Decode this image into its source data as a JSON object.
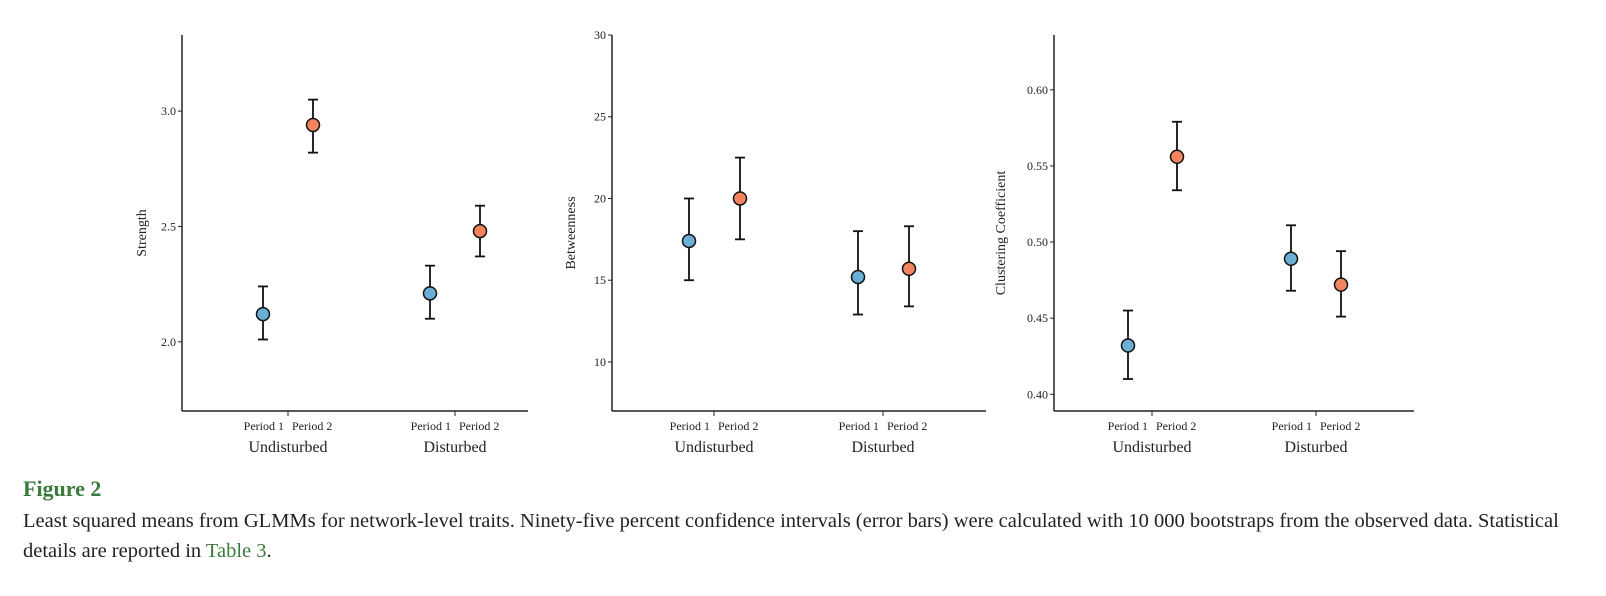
{
  "chart_data": [
    {
      "type": "scatter",
      "ylabel": "Strength",
      "ylim": [
        1.7,
        3.33
      ],
      "yticks": [
        2.0,
        2.5,
        3.0
      ],
      "ytick_labels": [
        "2.0",
        "2.5",
        "3.0"
      ],
      "groups": [
        {
          "label": "Undisturbed",
          "periods": [
            {
              "label": "Period 1",
              "value": 2.12,
              "lower": 2.01,
              "upper": 2.24,
              "color": "#6baed6"
            },
            {
              "label": "Period 2",
              "value": 2.94,
              "lower": 2.82,
              "upper": 3.05,
              "color": "#f4845f"
            }
          ]
        },
        {
          "label": "Disturbed",
          "periods": [
            {
              "label": "Period 1",
              "value": 2.21,
              "lower": 2.1,
              "upper": 2.33,
              "color": "#6baed6"
            },
            {
              "label": "Period 2",
              "value": 2.48,
              "lower": 2.37,
              "upper": 2.59,
              "color": "#f4845f"
            }
          ]
        }
      ]
    },
    {
      "type": "scatter",
      "ylabel": "Betweenness",
      "ylim": [
        7.0,
        30.0
      ],
      "yticks": [
        10,
        15,
        20,
        25,
        30
      ],
      "ytick_labels": [
        "10",
        "15",
        "20",
        "25",
        "30"
      ],
      "groups": [
        {
          "label": "Undisturbed",
          "periods": [
            {
              "label": "Period 1",
              "value": 17.4,
              "lower": 15.0,
              "upper": 20.0,
              "color": "#6baed6"
            },
            {
              "label": "Period 2",
              "value": 20.0,
              "lower": 17.5,
              "upper": 22.5,
              "color": "#f4845f"
            }
          ]
        },
        {
          "label": "Disturbed",
          "periods": [
            {
              "label": "Period 1",
              "value": 15.2,
              "lower": 12.9,
              "upper": 18.0,
              "color": "#6baed6"
            },
            {
              "label": "Period 2",
              "value": 15.7,
              "lower": 13.4,
              "upper": 18.3,
              "color": "#f4845f"
            }
          ]
        }
      ]
    },
    {
      "type": "scatter",
      "ylabel": "Clustering Coefficient",
      "ylim": [
        0.389,
        0.636
      ],
      "yticks": [
        0.4,
        0.45,
        0.5,
        0.55,
        0.6
      ],
      "ytick_labels": [
        "0.40",
        "0.45",
        "0.50",
        "0.55",
        "0.60"
      ],
      "groups": [
        {
          "label": "Undisturbed",
          "periods": [
            {
              "label": "Period 1",
              "value": 0.432,
              "lower": 0.41,
              "upper": 0.455,
              "color": "#6baed6"
            },
            {
              "label": "Period 2",
              "value": 0.556,
              "lower": 0.534,
              "upper": 0.579,
              "color": "#f4845f"
            }
          ]
        },
        {
          "label": "Disturbed",
          "periods": [
            {
              "label": "Period 1",
              "value": 0.489,
              "lower": 0.468,
              "upper": 0.511,
              "color": "#6baed6"
            },
            {
              "label": "Period 2",
              "value": 0.472,
              "lower": 0.451,
              "upper": 0.494,
              "color": "#f4845f"
            }
          ]
        }
      ]
    }
  ],
  "caption": {
    "title": "Figure 2",
    "text": "Least squared means from GLMMs for network-level traits. Ninety-five percent confidence intervals (error bars) were calculated with 10 000 bootstraps from the observed data. Statistical details are reported in ",
    "link": "Table 3",
    "end": "."
  }
}
